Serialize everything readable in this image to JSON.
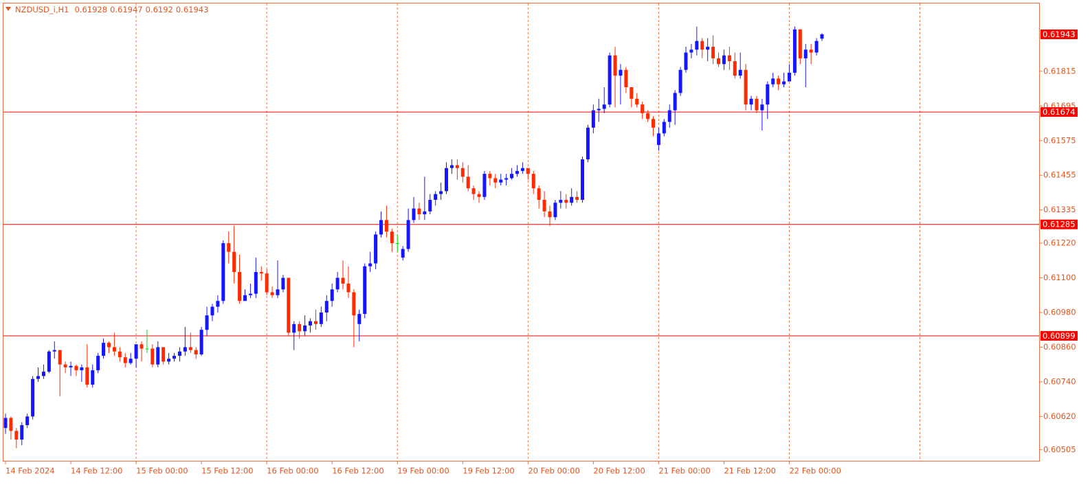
{
  "chart_data": {
    "type": "candlestick",
    "title": "NZDUSD_i,H1",
    "up_color": "#1515ff",
    "down_color": "#ff2a00",
    "doji_color": "#00e000",
    "level_color": "#ff0000",
    "grid": true,
    "ylim": [
      0.60464,
      0.6205
    ],
    "yticks": [
      0.61815,
      0.61695,
      0.61575,
      0.61455,
      0.61335,
      {
        "value": 0.6122,
        "label": "0.61220"
      },
      {
        "value": 0.611,
        "label": "0.61100"
      },
      {
        "value": 0.6098,
        "label": "0.60980"
      },
      {
        "value": 0.6086,
        "label": "0.60860"
      },
      {
        "value": 0.6074,
        "label": "0.60740"
      },
      {
        "value": 0.6062,
        "label": "0.60620"
      },
      0.60505
    ],
    "levels": [
      0.61674,
      0.61285,
      0.60899
    ],
    "categories": [
      "14 Feb 2024",
      null,
      null,
      null,
      null,
      null,
      null,
      null,
      null,
      null,
      null,
      null,
      "14 Feb 12:00",
      null,
      null,
      null,
      null,
      null,
      null,
      null,
      null,
      null,
      null,
      null,
      "15 Feb 00:00",
      null,
      null,
      null,
      null,
      null,
      null,
      null,
      null,
      null,
      null,
      null,
      "15 Feb 12:00",
      null,
      null,
      null,
      null,
      null,
      null,
      null,
      null,
      null,
      null,
      null,
      "16 Feb 00:00",
      null,
      null,
      null,
      null,
      null,
      null,
      null,
      null,
      null,
      null,
      null,
      "16 Feb 12:00",
      null,
      null,
      null,
      null,
      null,
      null,
      null,
      null,
      null,
      null,
      null,
      "19 Feb 00:00",
      null,
      null,
      null,
      null,
      null,
      null,
      null,
      null,
      null,
      null,
      null,
      "19 Feb 12:00",
      null,
      null,
      null,
      null,
      null,
      null,
      null,
      null,
      null,
      null,
      null,
      "20 Feb 00:00",
      null,
      null,
      null,
      null,
      null,
      null,
      null,
      null,
      null,
      null,
      null,
      "20 Feb 12:00",
      null,
      null,
      null,
      null,
      null,
      null,
      null,
      null,
      null,
      null,
      null,
      "21 Feb 00:00",
      null,
      null,
      null,
      null,
      null,
      null,
      null,
      null,
      null,
      null,
      null,
      "21 Feb 12:00",
      null,
      null,
      null,
      null,
      null,
      null,
      null,
      null,
      null,
      null,
      null,
      "22 Feb 00:00",
      null,
      null,
      null,
      null,
      null,
      null
    ],
    "open": [
      0.6058,
      0.60615,
      0.6057,
      0.6054,
      0.6059,
      0.6062,
      0.6075,
      0.6076,
      0.60775,
      0.60845,
      0.6085,
      0.608,
      0.6079,
      0.60795,
      0.6078,
      0.6079,
      0.6073,
      0.6078,
      0.6083,
      0.60875,
      0.6086,
      0.60845,
      0.60825,
      0.60805,
      0.6082,
      0.6087,
      0.60855,
      0.60855,
      0.608,
      0.6086,
      0.6081,
      0.6082,
      0.6083,
      0.60845,
      0.6086,
      0.6085,
      0.60835,
      0.6092,
      0.6097,
      0.61,
      0.6102,
      0.6122,
      0.6119,
      0.6112,
      0.6102,
      0.6104,
      0.61045,
      0.6112,
      0.61115,
      0.6105,
      0.6104,
      0.6106,
      0.611,
      0.6091,
      0.6094,
      0.60915,
      0.60935,
      0.6095,
      0.6094,
      0.6098,
      0.6102,
      0.6106,
      0.611,
      0.6108,
      0.6105,
      0.6094,
      0.60975,
      0.6114,
      0.6115,
      0.6125,
      0.613,
      0.6126,
      0.6122,
      0.6117,
      0.612,
      0.613,
      0.6134,
      0.6132,
      0.6133,
      0.6137,
      0.6139,
      0.614,
      0.6148,
      0.6149,
      0.6148,
      0.6145,
      0.6141,
      0.6139,
      0.6138,
      0.6146,
      0.61445,
      0.6143,
      0.6144,
      0.61445,
      0.6146,
      0.6147,
      0.6148,
      0.6146,
      0.6141,
      0.6137,
      0.6133,
      0.6131,
      0.6136,
      0.6137,
      0.6136,
      0.6138,
      0.6137,
      0.6151,
      0.6162,
      0.6168,
      0.61685,
      0.617,
      0.6187,
      0.618,
      0.6182,
      0.6176,
      0.6172,
      0.617,
      0.6167,
      0.6165,
      0.6156,
      0.616,
      0.6164,
      0.6168,
      0.6174,
      0.6182,
      0.6188,
      0.6189,
      0.6192,
      0.6189,
      0.619,
      0.6186,
      0.6184,
      0.6187,
      0.6185,
      0.618,
      0.6182,
      0.617,
      0.6172,
      0.6168,
      0.617,
      0.6177,
      0.6179,
      0.6177,
      0.6178,
      0.6181,
      0.6196,
      0.6186,
      0.6189,
      0.6188,
      0.61928
    ],
    "high": [
      0.6063,
      0.6062,
      0.6058,
      0.606,
      0.6063,
      0.6076,
      0.6079,
      0.608,
      0.6085,
      0.6088,
      0.6085,
      0.6081,
      0.6081,
      0.608,
      0.608,
      0.6087,
      0.608,
      0.6084,
      0.6089,
      0.6088,
      0.6091,
      0.6086,
      0.6084,
      0.6084,
      0.6087,
      0.6088,
      0.6092,
      0.6087,
      0.6088,
      0.6086,
      0.6084,
      0.6084,
      0.6086,
      0.6093,
      0.6091,
      0.6086,
      0.6093,
      0.61,
      0.6101,
      0.6104,
      0.6123,
      0.6126,
      0.6128,
      0.6118,
      0.6106,
      0.6108,
      0.6117,
      0.6114,
      0.6113,
      0.6107,
      0.6116,
      0.6111,
      0.611,
      0.6095,
      0.6095,
      0.6097,
      0.6096,
      0.6099,
      0.61,
      0.6104,
      0.6108,
      0.6112,
      0.6116,
      0.6114,
      0.6106,
      0.6099,
      0.6115,
      0.6119,
      0.6126,
      0.6133,
      0.6135,
      0.6127,
      0.6125,
      0.6121,
      0.6134,
      0.6138,
      0.6136,
      0.6145,
      0.6139,
      0.614,
      0.6143,
      0.615,
      0.6151,
      0.6151,
      0.615,
      0.6149,
      0.6142,
      0.614,
      0.6147,
      0.6147,
      0.6146,
      0.6146,
      0.6146,
      0.6148,
      0.6149,
      0.615,
      0.6148,
      0.6147,
      0.6142,
      0.614,
      0.6135,
      0.6137,
      0.614,
      0.6139,
      0.6141,
      0.614,
      0.6152,
      0.6163,
      0.617,
      0.6172,
      0.6176,
      0.6188,
      0.619,
      0.6184,
      0.6183,
      0.6176,
      0.6174,
      0.6171,
      0.6168,
      0.6166,
      0.6162,
      0.6165,
      0.617,
      0.6175,
      0.6183,
      0.619,
      0.6191,
      0.6197,
      0.6193,
      0.6193,
      0.6194,
      0.6188,
      0.6189,
      0.619,
      0.6188,
      0.6188,
      0.6184,
      0.6173,
      0.6173,
      0.6172,
      0.6178,
      0.6181,
      0.618,
      0.6181,
      0.6184,
      0.6197,
      0.6196,
      0.6191,
      0.6191,
      0.6193,
      0.61947
    ],
    "low": [
      0.6056,
      0.6054,
      0.6051,
      0.6052,
      0.6058,
      0.6061,
      0.6074,
      0.6075,
      0.6077,
      0.6082,
      0.6069,
      0.6077,
      0.6076,
      0.6076,
      0.6074,
      0.6072,
      0.6072,
      0.6077,
      0.6082,
      0.6084,
      0.6083,
      0.6081,
      0.6079,
      0.608,
      0.6079,
      0.6081,
      0.6084,
      0.6079,
      0.6079,
      0.608,
      0.608,
      0.6081,
      0.6081,
      0.6083,
      0.6084,
      0.6082,
      0.6083,
      0.609,
      0.6095,
      0.6098,
      0.6101,
      0.6115,
      0.6108,
      0.6101,
      0.6102,
      0.6103,
      0.6103,
      0.6109,
      0.6104,
      0.6103,
      0.6103,
      0.6105,
      0.609,
      0.6085,
      0.6089,
      0.609,
      0.6091,
      0.6092,
      0.6093,
      0.6095,
      0.61,
      0.6105,
      0.6106,
      0.6103,
      0.6086,
      0.6088,
      0.6096,
      0.6112,
      0.6113,
      0.6124,
      0.6124,
      0.6119,
      0.6119,
      0.6116,
      0.6119,
      0.6129,
      0.613,
      0.613,
      0.6132,
      0.6135,
      0.6137,
      0.6139,
      0.6146,
      0.6144,
      0.6143,
      0.614,
      0.6137,
      0.6136,
      0.6137,
      0.6142,
      0.6141,
      0.6142,
      0.6142,
      0.6144,
      0.6145,
      0.6146,
      0.6144,
      0.6139,
      0.6134,
      0.6131,
      0.6128,
      0.613,
      0.6134,
      0.6134,
      0.6135,
      0.6136,
      0.6136,
      0.615,
      0.616,
      0.6164,
      0.6167,
      0.6169,
      0.6169,
      0.617,
      0.6174,
      0.6169,
      0.6169,
      0.6165,
      0.6164,
      0.6159,
      0.6154,
      0.6159,
      0.6162,
      0.6163,
      0.6173,
      0.6181,
      0.6186,
      0.6187,
      0.6186,
      0.6185,
      0.6184,
      0.6183,
      0.6182,
      0.6182,
      0.6179,
      0.6179,
      0.6168,
      0.6168,
      0.6167,
      0.6161,
      0.6165,
      0.6176,
      0.6175,
      0.6176,
      0.6178,
      0.618,
      0.6184,
      0.6176,
      0.6184,
      0.6187,
      0.6192
    ],
    "close": [
      0.60615,
      0.6057,
      0.6054,
      0.6059,
      0.6062,
      0.6075,
      0.6076,
      0.60775,
      0.60845,
      0.6085,
      0.608,
      0.6079,
      0.60795,
      0.6078,
      0.6079,
      0.6073,
      0.6078,
      0.6083,
      0.60875,
      0.6086,
      0.60845,
      0.60825,
      0.60805,
      0.6082,
      0.6087,
      0.60855,
      0.60855,
      0.608,
      0.6086,
      0.6081,
      0.6082,
      0.6083,
      0.60845,
      0.6086,
      0.6085,
      0.60835,
      0.6092,
      0.6097,
      0.61,
      0.6102,
      0.6122,
      0.6119,
      0.6112,
      0.6102,
      0.6104,
      0.61045,
      0.6112,
      0.61115,
      0.6105,
      0.6104,
      0.6106,
      0.611,
      0.6091,
      0.6094,
      0.60915,
      0.60935,
      0.6095,
      0.6094,
      0.6098,
      0.6102,
      0.6106,
      0.611,
      0.6108,
      0.6105,
      0.6097,
      0.60975,
      0.6114,
      0.6115,
      0.6125,
      0.613,
      0.6126,
      0.6122,
      0.6122,
      0.612,
      0.613,
      0.6134,
      0.6132,
      0.6133,
      0.6137,
      0.6139,
      0.614,
      0.6148,
      0.6149,
      0.6148,
      0.6145,
      0.6141,
      0.6139,
      0.6138,
      0.6146,
      0.61445,
      0.6143,
      0.6144,
      0.61445,
      0.6146,
      0.6147,
      0.6148,
      0.6146,
      0.6141,
      0.6137,
      0.6133,
      0.6131,
      0.6136,
      0.6137,
      0.6136,
      0.6138,
      0.6137,
      0.6151,
      0.6162,
      0.6168,
      0.61685,
      0.617,
      0.6187,
      0.618,
      0.6182,
      0.6176,
      0.6172,
      0.617,
      0.6167,
      0.6165,
      0.6162,
      0.616,
      0.6164,
      0.6168,
      0.6174,
      0.6182,
      0.6188,
      0.6189,
      0.6192,
      0.6189,
      0.619,
      0.6186,
      0.6184,
      0.6187,
      0.6185,
      0.618,
      0.6182,
      0.617,
      0.6172,
      0.6168,
      0.617,
      0.6177,
      0.6179,
      0.6177,
      0.6178,
      0.6181,
      0.6196,
      0.6186,
      0.6189,
      0.6188,
      0.6192,
      0.61943
    ]
  }
}
